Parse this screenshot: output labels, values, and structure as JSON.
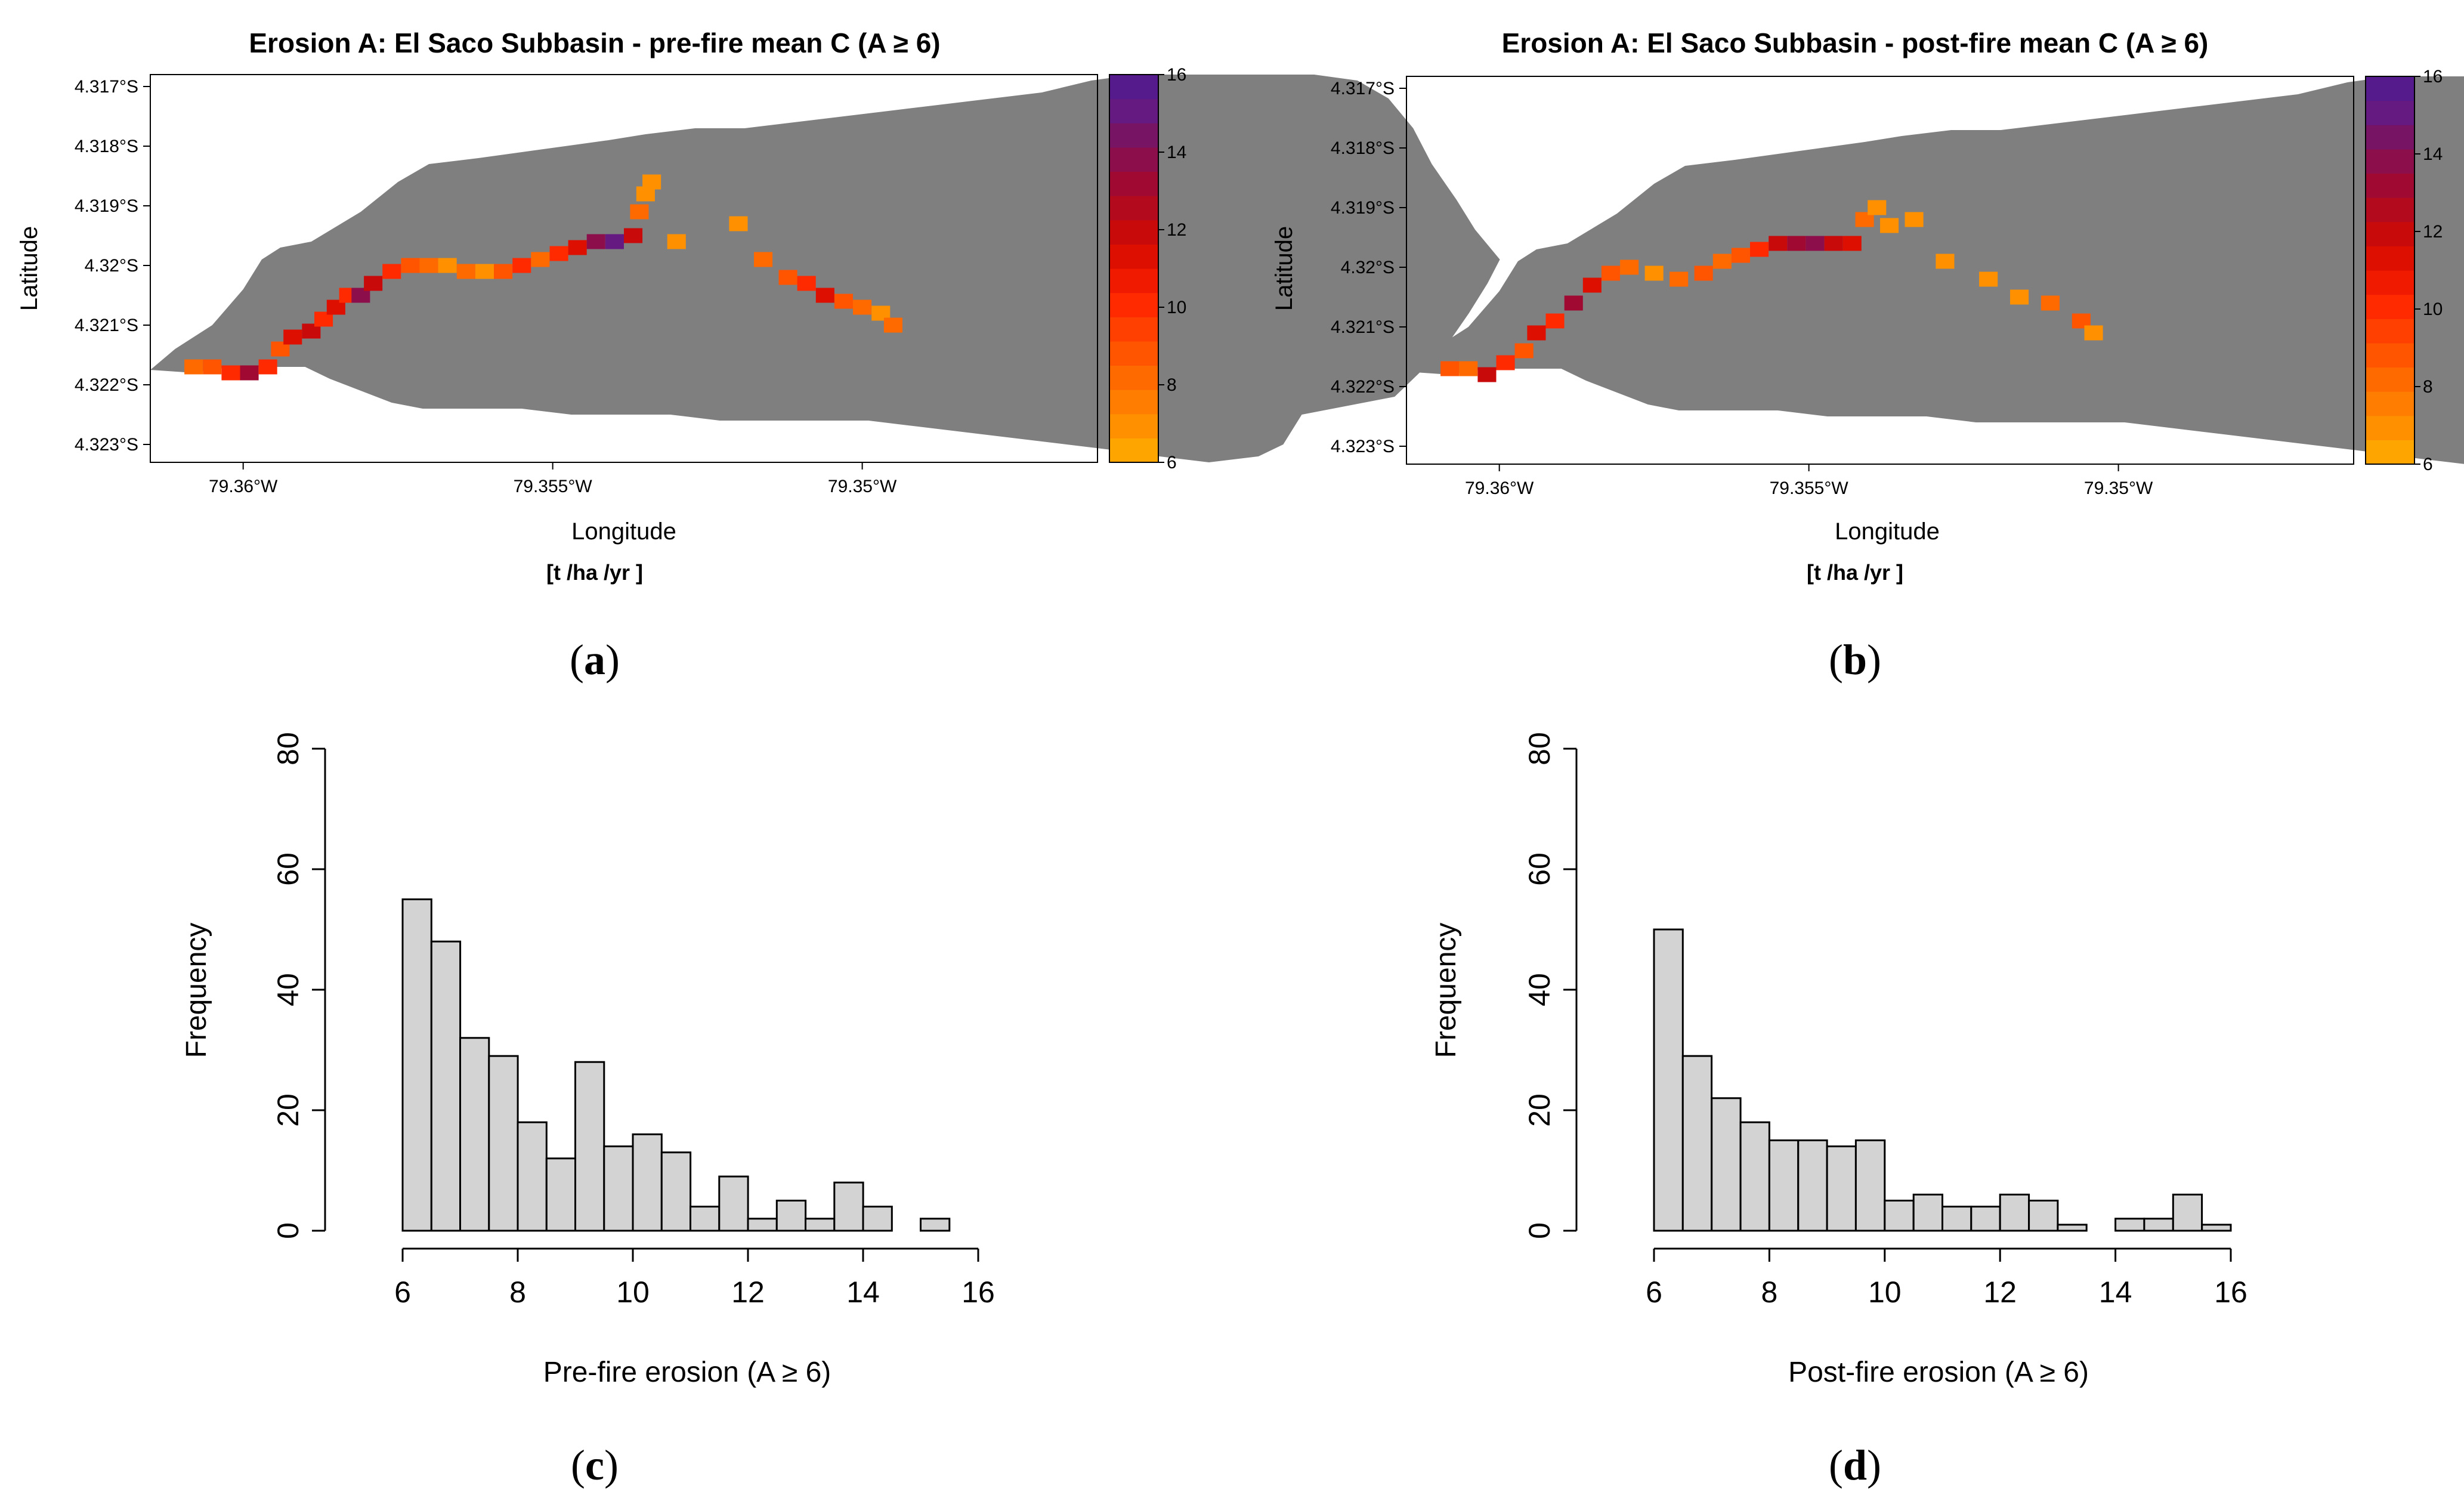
{
  "colors": {
    "basin": "#7f7f7f",
    "background": "#ffffff",
    "bar_fill": "#d3d3d3",
    "bar_stroke": "#000000",
    "palette": [
      "#ffa500",
      "#ff9100",
      "#ff7d00",
      "#ff6a00",
      "#ff5500",
      "#ff4000",
      "#ff2a00",
      "#f01a00",
      "#dc0f00",
      "#c80a0a",
      "#b40a1e",
      "#a00a32",
      "#8c0f4b",
      "#781464",
      "#641a80",
      "#551a8b"
    ]
  },
  "chart_data": [
    {
      "id": "a",
      "type": "heatmap",
      "panel_label": "a",
      "title": "Erosion A: El Saco Subbasin - pre-fire mean C (A ≥ 6)",
      "xlabel": "Longitude",
      "ylabel": "Latitude",
      "unit_label": "[t /ha /yr ]",
      "x_ticks": [
        -79.36,
        -79.355,
        -79.35
      ],
      "x_tick_labels": [
        "79.36°W",
        "79.355°W",
        "79.35°W"
      ],
      "y_ticks": [
        -4.317,
        -4.318,
        -4.319,
        -4.32,
        -4.321,
        -4.322,
        -4.323
      ],
      "y_tick_labels": [
        "4.317°S",
        "4.318°S",
        "4.319°S",
        "4.32°S",
        "4.321°S",
        "4.322°S",
        "4.323°S"
      ],
      "xlim": [
        -79.3615,
        -79.3462
      ],
      "ylim": [
        -4.3233,
        -4.3168
      ],
      "colorbar": {
        "range": [
          6,
          16
        ],
        "ticks": [
          6,
          8,
          10,
          12,
          14,
          16
        ],
        "tick_labels": [
          "6",
          "8",
          "10",
          "12",
          "14",
          "16"
        ]
      },
      "basin_outline": [
        [
          -79.3615,
          -4.32175
        ],
        [
          -79.3611,
          -4.3214
        ],
        [
          -79.3605,
          -4.321
        ],
        [
          -79.36,
          -4.3204
        ],
        [
          -79.3597,
          -4.3199
        ],
        [
          -79.3594,
          -4.3197
        ],
        [
          -79.3589,
          -4.3196
        ],
        [
          -79.3581,
          -4.3191
        ],
        [
          -79.3575,
          -4.3186
        ],
        [
          -79.357,
          -4.3183
        ],
        [
          -79.3562,
          -4.3182
        ],
        [
          -79.3555,
          -4.3181
        ],
        [
          -79.3548,
          -4.318
        ],
        [
          -79.3541,
          -4.3179
        ],
        [
          -79.3535,
          -4.3178
        ],
        [
          -79.3527,
          -4.3177
        ],
        [
          -79.3519,
          -4.3177
        ],
        [
          -79.3511,
          -4.3176
        ],
        [
          -79.3503,
          -4.3175
        ],
        [
          -79.3495,
          -4.3174
        ],
        [
          -79.3487,
          -4.3173
        ],
        [
          -79.3479,
          -4.3172
        ],
        [
          -79.3471,
          -4.3171
        ],
        [
          -79.3463,
          -4.3169
        ],
        [
          -79.3456,
          -4.3168
        ],
        [
          -79.3448,
          -4.3168
        ],
        [
          -79.344,
          -4.3168
        ],
        [
          -79.3433,
          -4.3168
        ],
        [
          -79.3427,
          -4.3168
        ],
        [
          -79.342,
          -4.3169
        ],
        [
          -79.3415,
          -4.3172
        ],
        [
          -79.3411,
          -4.3177
        ],
        [
          -79.3408,
          -4.3183
        ],
        [
          -79.3404,
          -4.3189
        ],
        [
          -79.3401,
          -4.3194
        ],
        [
          -79.3397,
          -4.3199
        ],
        [
          -79.3399,
          -4.3203
        ],
        [
          -79.3402,
          -4.3208
        ],
        [
          -79.3406,
          -4.3214
        ],
        [
          -79.341,
          -4.3218
        ],
        [
          -79.3414,
          -4.3222
        ],
        [
          -79.3419,
          -4.3223
        ],
        [
          -79.3424,
          -4.3224
        ],
        [
          -79.3429,
          -4.3225
        ],
        [
          -79.3432,
          -4.323
        ],
        [
          -79.3436,
          -4.3232
        ],
        [
          -79.3444,
          -4.3233
        ],
        [
          -79.3452,
          -4.3232
        ],
        [
          -79.3459,
          -4.3231
        ],
        [
          -79.3467,
          -4.323
        ],
        [
          -79.3475,
          -4.3229
        ],
        [
          -79.3483,
          -4.3228
        ],
        [
          -79.3491,
          -4.3227
        ],
        [
          -79.3499,
          -4.3226
        ],
        [
          -79.3507,
          -4.3226
        ],
        [
          -79.3515,
          -4.3226
        ],
        [
          -79.3523,
          -4.3226
        ],
        [
          -79.3531,
          -4.3225
        ],
        [
          -79.3539,
          -4.3225
        ],
        [
          -79.3547,
          -4.3225
        ],
        [
          -79.3555,
          -4.3224
        ],
        [
          -79.3563,
          -4.3224
        ],
        [
          -79.3571,
          -4.3224
        ],
        [
          -79.3576,
          -4.3223
        ],
        [
          -79.3581,
          -4.3221
        ],
        [
          -79.3586,
          -4.3219
        ],
        [
          -79.359,
          -4.3217
        ],
        [
          -79.3596,
          -4.3217
        ],
        [
          -79.3602,
          -4.3217
        ],
        [
          -79.3608,
          -4.3218
        ]
      ],
      "cells": [
        [
          -79.3608,
          -4.3217,
          8
        ],
        [
          -79.3605,
          -4.3217,
          9
        ],
        [
          -79.3602,
          -4.3218,
          10
        ],
        [
          -79.3599,
          -4.3218,
          13
        ],
        [
          -79.3596,
          -4.3217,
          10
        ],
        [
          -79.3594,
          -4.3214,
          9
        ],
        [
          -79.3592,
          -4.3212,
          11
        ],
        [
          -79.3589,
          -4.3211,
          12
        ],
        [
          -79.3587,
          -4.3209,
          10
        ],
        [
          -79.3585,
          -4.3207,
          11
        ],
        [
          -79.3583,
          -4.3205,
          10
        ],
        [
          -79.3581,
          -4.3205,
          14
        ],
        [
          -79.3579,
          -4.3203,
          12
        ],
        [
          -79.3576,
          -4.3201,
          10
        ],
        [
          -79.3573,
          -4.32,
          9
        ],
        [
          -79.357,
          -4.32,
          8
        ],
        [
          -79.3567,
          -4.32,
          7
        ],
        [
          -79.3564,
          -4.3201,
          8
        ],
        [
          -79.3561,
          -4.3201,
          7
        ],
        [
          -79.3558,
          -4.3201,
          9
        ],
        [
          -79.3555,
          -4.32,
          10
        ],
        [
          -79.3552,
          -4.3199,
          8
        ],
        [
          -79.3549,
          -4.3198,
          10
        ],
        [
          -79.3546,
          -4.3197,
          11
        ],
        [
          -79.3543,
          -4.3196,
          14
        ],
        [
          -79.354,
          -4.3196,
          15
        ],
        [
          -79.3537,
          -4.3195,
          12
        ],
        [
          -79.3536,
          -4.3191,
          8
        ],
        [
          -79.3535,
          -4.3188,
          7
        ],
        [
          -79.3534,
          -4.3186,
          7
        ],
        [
          -79.353,
          -4.3196,
          7
        ],
        [
          -79.352,
          -4.3193,
          7
        ],
        [
          -79.3516,
          -4.3199,
          8
        ],
        [
          -79.3512,
          -4.3202,
          9
        ],
        [
          -79.3509,
          -4.3203,
          10
        ],
        [
          -79.3506,
          -4.3205,
          11
        ],
        [
          -79.3503,
          -4.3206,
          9
        ],
        [
          -79.35,
          -4.3207,
          8
        ],
        [
          -79.3497,
          -4.3208,
          7
        ],
        [
          -79.3495,
          -4.321,
          8
        ]
      ]
    },
    {
      "id": "b",
      "type": "heatmap",
      "panel_label": "b",
      "title": "Erosion A: El Saco Subbasin - post-fire mean C (A ≥ 6)",
      "xlabel": "Longitude",
      "ylabel": "Latitude",
      "unit_label": "[t /ha /yr ]",
      "x_ticks": [
        -79.36,
        -79.355,
        -79.35
      ],
      "x_tick_labels": [
        "79.36°W",
        "79.355°W",
        "79.35°W"
      ],
      "y_ticks": [
        -4.317,
        -4.318,
        -4.319,
        -4.32,
        -4.321,
        -4.322,
        -4.323
      ],
      "y_tick_labels": [
        "4.317°S",
        "4.318°S",
        "4.319°S",
        "4.32°S",
        "4.321°S",
        "4.322°S",
        "4.323°S"
      ],
      "xlim": [
        -79.3615,
        -79.3462
      ],
      "ylim": [
        -4.3233,
        -4.3168
      ],
      "colorbar": {
        "range": [
          6,
          16
        ],
        "ticks": [
          6,
          8,
          10,
          12,
          14,
          16
        ],
        "tick_labels": [
          "6",
          "8",
          "10",
          "12",
          "14",
          "16"
        ]
      },
      "cells": [
        [
          -79.3608,
          -4.3217,
          9
        ],
        [
          -79.3605,
          -4.3217,
          8
        ],
        [
          -79.3602,
          -4.3218,
          12
        ],
        [
          -79.3599,
          -4.3216,
          10
        ],
        [
          -79.3596,
          -4.3214,
          9
        ],
        [
          -79.3594,
          -4.3211,
          11
        ],
        [
          -79.3591,
          -4.3209,
          10
        ],
        [
          -79.3588,
          -4.3206,
          13
        ],
        [
          -79.3585,
          -4.3203,
          11
        ],
        [
          -79.3582,
          -4.3201,
          9
        ],
        [
          -79.3579,
          -4.32,
          8
        ],
        [
          -79.3575,
          -4.3201,
          7
        ],
        [
          -79.3571,
          -4.3202,
          8
        ],
        [
          -79.3567,
          -4.3201,
          9
        ],
        [
          -79.3564,
          -4.3199,
          8
        ],
        [
          -79.3561,
          -4.3198,
          9
        ],
        [
          -79.3558,
          -4.3197,
          10
        ],
        [
          -79.3555,
          -4.3196,
          12
        ],
        [
          -79.3552,
          -4.3196,
          13
        ],
        [
          -79.3549,
          -4.3196,
          14
        ],
        [
          -79.3546,
          -4.3196,
          12
        ],
        [
          -79.3543,
          -4.3196,
          11
        ],
        [
          -79.3541,
          -4.3192,
          8
        ],
        [
          -79.3539,
          -4.319,
          7
        ],
        [
          -79.3537,
          -4.3193,
          7
        ],
        [
          -79.3533,
          -4.3192,
          7
        ],
        [
          -79.3528,
          -4.3199,
          7
        ],
        [
          -79.3521,
          -4.3202,
          7
        ],
        [
          -79.3516,
          -4.3205,
          7
        ],
        [
          -79.3511,
          -4.3206,
          8
        ],
        [
          -79.3506,
          -4.3209,
          9
        ],
        [
          -79.3504,
          -4.3211,
          7
        ]
      ]
    },
    {
      "id": "c",
      "type": "bar",
      "panel_label": "c",
      "title": "",
      "xlabel": "Pre-fire erosion (A ≥ 6)",
      "ylabel": "Frequency",
      "bin_start": 6,
      "bin_width": 0.5,
      "values": [
        55,
        48,
        32,
        29,
        18,
        12,
        28,
        14,
        16,
        13,
        4,
        9,
        2,
        5,
        2,
        8,
        4,
        0,
        2
      ],
      "xlim": [
        6,
        16
      ],
      "ylim": [
        0,
        80
      ],
      "x_ticks": [
        6,
        8,
        10,
        12,
        14,
        16
      ],
      "x_tick_labels": [
        "6",
        "8",
        "10",
        "12",
        "14",
        "16"
      ],
      "y_ticks": [
        0,
        20,
        40,
        60,
        80
      ],
      "y_tick_labels": [
        "0",
        "20",
        "40",
        "60",
        "80"
      ]
    },
    {
      "id": "d",
      "type": "bar",
      "panel_label": "d",
      "title": "",
      "xlabel": "Post-fire erosion (A ≥ 6)",
      "ylabel": "Frequency",
      "bin_start": 6,
      "bin_width": 0.5,
      "values": [
        50,
        29,
        22,
        18,
        15,
        15,
        14,
        15,
        5,
        6,
        4,
        4,
        6,
        5,
        1,
        0,
        2,
        2,
        6,
        1
      ],
      "xlim": [
        6,
        16
      ],
      "ylim": [
        0,
        80
      ],
      "x_ticks": [
        6,
        8,
        10,
        12,
        14,
        16
      ],
      "x_tick_labels": [
        "6",
        "8",
        "10",
        "12",
        "14",
        "16"
      ],
      "y_ticks": [
        0,
        20,
        40,
        60,
        80
      ],
      "y_tick_labels": [
        "0",
        "20",
        "40",
        "60",
        "80"
      ]
    }
  ]
}
